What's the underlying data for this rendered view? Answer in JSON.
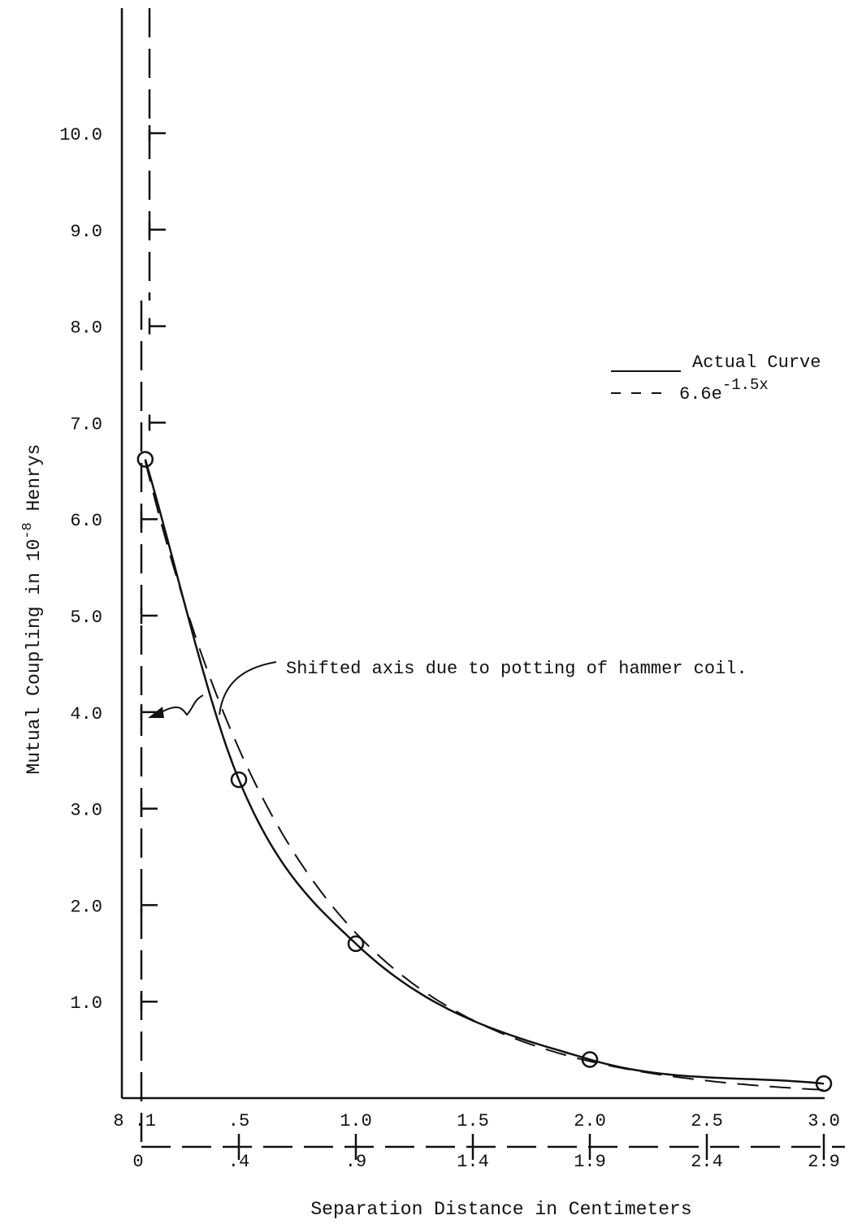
{
  "chart_data": {
    "type": "line",
    "xlabel": "Separation Distance in Centimeters",
    "ylabel_main": "Mutual Coupling in 10",
    "ylabel_exp": "-8",
    "ylabel_tail": " Henrys",
    "ylim": [
      0,
      11
    ],
    "xlim": [
      0,
      3.0
    ],
    "yticks": [
      {
        "value": 1.0,
        "label": "1.0"
      },
      {
        "value": 2.0,
        "label": "2.0"
      },
      {
        "value": 3.0,
        "label": "3.0"
      },
      {
        "value": 4.0,
        "label": "4.0"
      },
      {
        "value": 5.0,
        "label": "5.0"
      },
      {
        "value": 6.0,
        "label": "6.0"
      },
      {
        "value": 7.0,
        "label": "7.0"
      },
      {
        "value": 8.0,
        "label": "8.0"
      },
      {
        "value": 9.0,
        "label": "9.0"
      },
      {
        "value": 10.0,
        "label": "10.0"
      }
    ],
    "xticks_top": [
      {
        "value": 0.0,
        "label": "8"
      },
      {
        "value": 0.1,
        "label": ".1"
      },
      {
        "value": 0.5,
        "label": ".5"
      },
      {
        "value": 1.0,
        "label": "1.0"
      },
      {
        "value": 1.5,
        "label": "1.5"
      },
      {
        "value": 2.0,
        "label": "2.0"
      },
      {
        "value": 2.5,
        "label": "2.5"
      },
      {
        "value": 3.0,
        "label": "3.0"
      }
    ],
    "xticks_shifted": [
      {
        "value": 0.1,
        "label": "0"
      },
      {
        "value": 0.5,
        "label": ".4"
      },
      {
        "value": 1.0,
        "label": ".9"
      },
      {
        "value": 1.5,
        "label": "1.4"
      },
      {
        "value": 2.0,
        "label": "1.9"
      },
      {
        "value": 2.5,
        "label": "2.4"
      },
      {
        "value": 3.0,
        "label": "2.9"
      }
    ],
    "shifted_axis_origin": 0.1,
    "series": [
      {
        "name": "Actual Curve",
        "style": "solid",
        "color": "#111111",
        "points": [
          {
            "x": 0.1,
            "y": 6.62
          },
          {
            "x": 0.5,
            "y": 3.3
          },
          {
            "x": 1.0,
            "y": 1.6
          },
          {
            "x": 2.0,
            "y": 0.4
          },
          {
            "x": 3.0,
            "y": 0.15
          }
        ]
      },
      {
        "name": "6.6e",
        "name_exp": "-1.5x",
        "style": "dashed",
        "color": "#111111",
        "formula": {
          "a": 6.6,
          "b": -1.5,
          "x_offset": 0.1
        }
      }
    ],
    "annotation": "Shifted axis due to potting of hammer coil."
  }
}
